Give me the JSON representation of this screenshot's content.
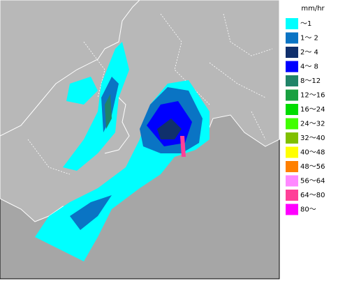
{
  "legend": {
    "unit": "mm/hr",
    "items": [
      {
        "label": "～1",
        "color": "#00ffff"
      },
      {
        "label": "1～ 2",
        "color": "#0a74c4"
      },
      {
        "label": "2～ 4",
        "color": "#10306c"
      },
      {
        "label": "4～ 8",
        "color": "#0000ff"
      },
      {
        "label": "8～12",
        "color": "#208468"
      },
      {
        "label": "12～16",
        "color": "#18a040"
      },
      {
        "label": "16～24",
        "color": "#00dc00"
      },
      {
        "label": "24～32",
        "color": "#40ff00"
      },
      {
        "label": "32～40",
        "color": "#80c000"
      },
      {
        "label": "40～48",
        "color": "#ffff00"
      },
      {
        "label": "48～56",
        "color": "#ff8000"
      },
      {
        "label": "56～64",
        "color": "#ff88ff"
      },
      {
        "label": "64～80",
        "color": "#ff4098"
      },
      {
        "label": "80～",
        "color": "#ff00ff"
      }
    ]
  }
}
